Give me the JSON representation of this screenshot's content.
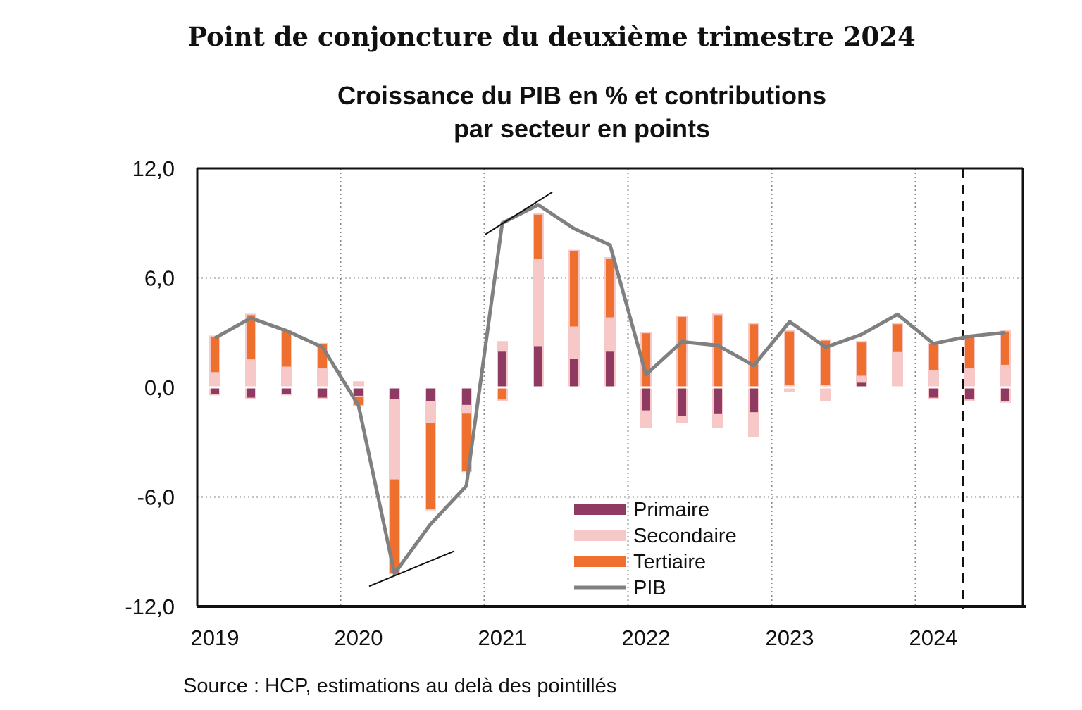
{
  "document": {
    "title": "Point de conjoncture du deuxième trimestre 2024",
    "source": "Source : HCP, estimations au delà des pointillés"
  },
  "colors": {
    "primaire": "#8e3a63",
    "secondaire": "#f6c9c8",
    "tertiaire": "#ef6f2e",
    "pib": "#808080"
  },
  "chart_data": {
    "type": "bar",
    "stacked": true,
    "title_line1": "Croissance du PIB en % et contributions",
    "title_line2": "par secteur en points",
    "ylim": [
      -12,
      12
    ],
    "yticks": [
      "12,0",
      "6,0",
      "0,0",
      "-6,0",
      "-12,0"
    ],
    "ytick_values": [
      12,
      6,
      0,
      -6,
      -12
    ],
    "xtick_labels": [
      "2019",
      "2020",
      "2021",
      "2022",
      "2023",
      "2024"
    ],
    "quarters": [
      "2019T1",
      "2019T2",
      "2019T3",
      "2019T4",
      "2020T1",
      "2020T2",
      "2020T3",
      "2020T4",
      "2021T1",
      "2021T2",
      "2021T3",
      "2021T4",
      "2022T1",
      "2022T2",
      "2022T3",
      "2022T4",
      "2023T1",
      "2023T2",
      "2023T3",
      "2023T4",
      "2024T1",
      "2024T2",
      "2024T3"
    ],
    "series": [
      {
        "name": "Primaire",
        "type": "bar",
        "values": [
          -0.4,
          -0.6,
          -0.4,
          -0.6,
          -0.5,
          -0.7,
          -0.8,
          -1.0,
          2.0,
          2.3,
          1.6,
          2.0,
          -1.3,
          -1.6,
          -1.5,
          -1.4,
          0.1,
          0.1,
          0.3,
          0.0,
          -0.6,
          -0.7,
          -0.8
        ]
      },
      {
        "name": "Secondaire",
        "type": "bar",
        "values": [
          0.8,
          1.5,
          1.1,
          1.0,
          0.3,
          -4.3,
          -1.1,
          -0.4,
          0.5,
          4.7,
          1.7,
          1.8,
          -0.9,
          -0.3,
          -0.7,
          -1.3,
          -0.2,
          -0.7,
          0.3,
          1.9,
          0.9,
          1.0,
          1.2
        ]
      },
      {
        "name": "Tertiaire",
        "type": "bar",
        "values": [
          2.0,
          2.5,
          2.0,
          1.4,
          -0.5,
          -5.2,
          -4.8,
          -3.2,
          -0.7,
          2.5,
          4.2,
          3.3,
          3.0,
          3.9,
          4.0,
          3.5,
          3.0,
          2.5,
          1.9,
          1.6,
          1.5,
          1.8,
          1.9
        ]
      },
      {
        "name": "PIB",
        "type": "line",
        "values": [
          2.7,
          3.8,
          3.1,
          2.2,
          -1.0,
          -10.2,
          -7.5,
          -5.4,
          9.0,
          10.0,
          8.7,
          7.8,
          0.7,
          2.5,
          2.3,
          1.2,
          3.6,
          2.2,
          2.9,
          4.0,
          2.4,
          2.8,
          3.0
        ]
      }
    ],
    "forecast_from_quarter_index": 20.75,
    "legend_position": "lower-center",
    "grid": "dotted"
  }
}
